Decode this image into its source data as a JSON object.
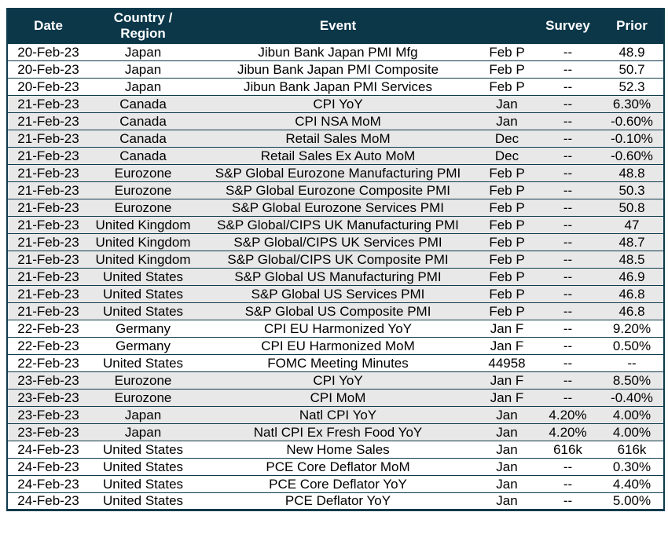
{
  "colors": {
    "header_bg": "#0b3749",
    "header_text": "#ffffff",
    "border": "#0e3a4d",
    "row_stripe": "#e8e8e8",
    "row_plain": "#ffffff",
    "body_text": "#000000"
  },
  "table": {
    "columns": [
      {
        "key": "date",
        "label": "Date"
      },
      {
        "key": "country",
        "label": "Country /\nRegion"
      },
      {
        "key": "event",
        "label": "Event"
      },
      {
        "key": "period",
        "label": ""
      },
      {
        "key": "survey",
        "label": "Survey"
      },
      {
        "key": "prior",
        "label": "Prior"
      }
    ],
    "shaded_dates": [
      "21-Feb-23",
      "23-Feb-23"
    ],
    "rows": [
      {
        "date": "20-Feb-23",
        "country": "Japan",
        "event": "Jibun Bank Japan PMI Mfg",
        "period": "Feb P",
        "survey": "--",
        "prior": "48.9"
      },
      {
        "date": "20-Feb-23",
        "country": "Japan",
        "event": "Jibun Bank Japan PMI Composite",
        "period": "Feb P",
        "survey": "--",
        "prior": "50.7"
      },
      {
        "date": "20-Feb-23",
        "country": "Japan",
        "event": "Jibun Bank Japan PMI Services",
        "period": "Feb P",
        "survey": "--",
        "prior": "52.3"
      },
      {
        "date": "21-Feb-23",
        "country": "Canada",
        "event": "CPI YoY",
        "period": "Jan",
        "survey": "--",
        "prior": "6.30%"
      },
      {
        "date": "21-Feb-23",
        "country": "Canada",
        "event": "CPI NSA MoM",
        "period": "Jan",
        "survey": "--",
        "prior": "-0.60%"
      },
      {
        "date": "21-Feb-23",
        "country": "Canada",
        "event": "Retail Sales MoM",
        "period": "Dec",
        "survey": "--",
        "prior": "-0.10%"
      },
      {
        "date": "21-Feb-23",
        "country": "Canada",
        "event": "Retail Sales Ex Auto MoM",
        "period": "Dec",
        "survey": "--",
        "prior": "-0.60%"
      },
      {
        "date": "21-Feb-23",
        "country": "Eurozone",
        "event": "S&P Global Eurozone Manufacturing PMI",
        "period": "Feb P",
        "survey": "--",
        "prior": "48.8"
      },
      {
        "date": "21-Feb-23",
        "country": "Eurozone",
        "event": "S&P Global Eurozone Composite PMI",
        "period": "Feb P",
        "survey": "--",
        "prior": "50.3"
      },
      {
        "date": "21-Feb-23",
        "country": "Eurozone",
        "event": "S&P Global Eurozone Services PMI",
        "period": "Feb P",
        "survey": "--",
        "prior": "50.8"
      },
      {
        "date": "21-Feb-23",
        "country": "United Kingdom",
        "event": "S&P Global/CIPS UK Manufacturing PMI",
        "period": "Feb P",
        "survey": "--",
        "prior": "47"
      },
      {
        "date": "21-Feb-23",
        "country": "United Kingdom",
        "event": "S&P Global/CIPS UK Services PMI",
        "period": "Feb P",
        "survey": "--",
        "prior": "48.7"
      },
      {
        "date": "21-Feb-23",
        "country": "United Kingdom",
        "event": "S&P Global/CIPS UK Composite PMI",
        "period": "Feb P",
        "survey": "--",
        "prior": "48.5"
      },
      {
        "date": "21-Feb-23",
        "country": "United States",
        "event": "S&P Global US Manufacturing PMI",
        "period": "Feb P",
        "survey": "--",
        "prior": "46.9"
      },
      {
        "date": "21-Feb-23",
        "country": "United States",
        "event": "S&P Global US Services PMI",
        "period": "Feb P",
        "survey": "--",
        "prior": "46.8"
      },
      {
        "date": "21-Feb-23",
        "country": "United States",
        "event": "S&P Global US Composite PMI",
        "period": "Feb P",
        "survey": "--",
        "prior": "46.8"
      },
      {
        "date": "22-Feb-23",
        "country": "Germany",
        "event": "CPI EU Harmonized YoY",
        "period": "Jan F",
        "survey": "--",
        "prior": "9.20%"
      },
      {
        "date": "22-Feb-23",
        "country": "Germany",
        "event": "CPI EU Harmonized MoM",
        "period": "Jan F",
        "survey": "--",
        "prior": "0.50%"
      },
      {
        "date": "22-Feb-23",
        "country": "United States",
        "event": "FOMC Meeting Minutes",
        "period": "44958",
        "survey": "--",
        "prior": "--"
      },
      {
        "date": "23-Feb-23",
        "country": "Eurozone",
        "event": "CPI YoY",
        "period": "Jan F",
        "survey": "--",
        "prior": "8.50%"
      },
      {
        "date": "23-Feb-23",
        "country": "Eurozone",
        "event": "CPI MoM",
        "period": "Jan F",
        "survey": "--",
        "prior": "-0.40%"
      },
      {
        "date": "23-Feb-23",
        "country": "Japan",
        "event": "Natl CPI YoY",
        "period": "Jan",
        "survey": "4.20%",
        "prior": "4.00%"
      },
      {
        "date": "23-Feb-23",
        "country": "Japan",
        "event": "Natl CPI Ex Fresh Food YoY",
        "period": "Jan",
        "survey": "4.20%",
        "prior": "4.00%"
      },
      {
        "date": "24-Feb-23",
        "country": "United States",
        "event": "New Home Sales",
        "period": "Jan",
        "survey": "616k",
        "prior": "616k"
      },
      {
        "date": "24-Feb-23",
        "country": "United States",
        "event": "PCE Core Deflator MoM",
        "period": "Jan",
        "survey": "--",
        "prior": "0.30%"
      },
      {
        "date": "24-Feb-23",
        "country": "United States",
        "event": "PCE Core Deflator YoY",
        "period": "Jan",
        "survey": "--",
        "prior": "4.40%"
      },
      {
        "date": "24-Feb-23",
        "country": "United States",
        "event": "PCE Deflator YoY",
        "period": "Jan",
        "survey": "--",
        "prior": "5.00%"
      }
    ]
  }
}
